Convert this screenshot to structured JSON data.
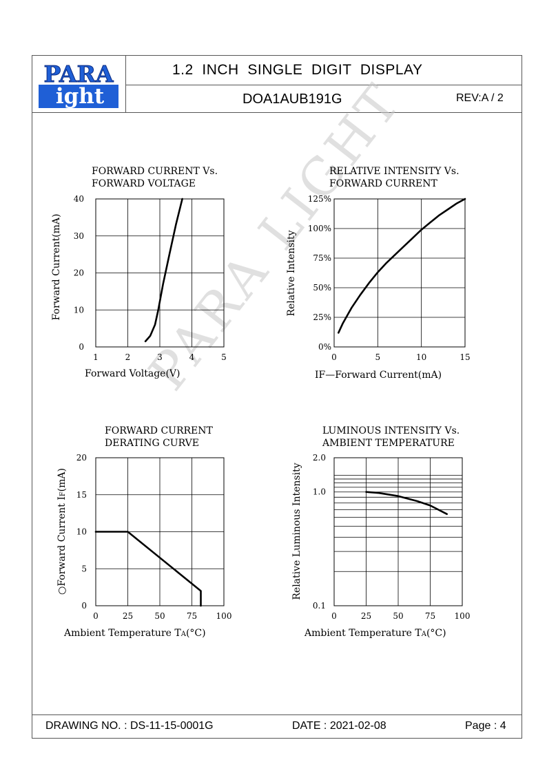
{
  "header": {
    "logo_top": "PARA",
    "logo_bottom": "ight",
    "title": "1.2  INCH  SINGLE  DIGIT  DISPLAY",
    "part_number": "DOA1AUB191G",
    "revision": "REV:A / 2"
  },
  "footer": {
    "drawing_no": "DRAWING NO. : DS-11-15-0001G",
    "date": "DATE : 2021-02-08",
    "page": "Page : 4"
  },
  "watermark": "PARA LIGHT",
  "colors": {
    "line": "#000000",
    "frame": "#555555",
    "logo_blue": "#1f5fd6",
    "watermark": "#c8c8c8"
  },
  "chart_data": [
    {
      "type": "line",
      "title": [
        "FORWARD  CURRENT  Vs.",
        "FORWARD  VOLTAGE"
      ],
      "xlabel": "Forward  Voltage(V)",
      "ylabel": "Forward  Current(mA)",
      "xlim": [
        1,
        5
      ],
      "ylim": [
        0,
        40
      ],
      "x_ticks": [
        "1",
        "2",
        "3",
        "4",
        "5"
      ],
      "y_ticks": [
        "0",
        "10",
        "20",
        "30",
        "40"
      ],
      "grid": true,
      "series": [
        {
          "x": [
            2.55,
            2.7,
            2.85,
            2.95,
            3.1,
            3.3,
            3.5,
            3.7
          ],
          "y": [
            1.5,
            3,
            6,
            10,
            17,
            25,
            33,
            40
          ]
        }
      ]
    },
    {
      "type": "line",
      "title": [
        "RELATIVE  INTENSITY  Vs.",
        "FORWARD  CURRENT"
      ],
      "xlabel_prefix": "IF",
      "xlabel": "—Forward  Current(mA)",
      "ylabel": "Relative  Intensity",
      "xlim": [
        0,
        15
      ],
      "ylim": [
        0,
        125
      ],
      "x_ticks": [
        "0",
        "5",
        "10",
        "15"
      ],
      "y_ticks": [
        "0%",
        "25%",
        "50%",
        "75%",
        "100%",
        "125%"
      ],
      "grid": true,
      "series": [
        {
          "x": [
            0.5,
            1,
            2,
            3,
            4,
            5,
            6,
            7,
            8,
            9,
            10,
            11,
            12,
            13,
            14,
            15
          ],
          "y": [
            12,
            20,
            33,
            44,
            54,
            63,
            71,
            78,
            85,
            92,
            99,
            105,
            111,
            116,
            121,
            125
          ]
        }
      ]
    },
    {
      "type": "line",
      "title": [
        "FORWARD  CURRENT",
        "DERATING  CURVE"
      ],
      "xlabel_prefix": "Ambient  Temperature  T",
      "xlabel_sub": "A",
      "xlabel": "(°C)",
      "ylabel_prefix": "○Forward  Current  I",
      "ylabel_sub": "F",
      "ylabel": "(mA)",
      "xlim": [
        0,
        100
      ],
      "ylim": [
        0,
        20
      ],
      "x_ticks": [
        "0",
        "25",
        "50",
        "75",
        "100"
      ],
      "y_ticks": [
        "0",
        "5",
        "10",
        "15",
        "20"
      ],
      "grid": true,
      "series": [
        {
          "x": [
            0,
            25,
            82,
            82
          ],
          "y": [
            10,
            10,
            2,
            0
          ]
        }
      ]
    },
    {
      "type": "line",
      "title": [
        "LUMINOUS  INTENSITY  Vs.",
        "AMBIENT  TEMPERATURE"
      ],
      "xlabel_prefix": "Ambient  Temperature  T",
      "xlabel_sub": "A",
      "xlabel": "(°C)",
      "ylabel": "Relative  Luminous  Intensity",
      "xlim": [
        0,
        100
      ],
      "ylim": [
        0.1,
        2.0
      ],
      "yscale": "log",
      "x_ticks": [
        "0",
        "25",
        "50",
        "75",
        "100"
      ],
      "y_ticks": [
        "0.1",
        "1.0",
        "2.0"
      ],
      "grid": true,
      "series": [
        {
          "x": [
            25,
            35,
            50,
            65,
            75,
            88
          ],
          "y": [
            1.0,
            0.98,
            0.92,
            0.83,
            0.76,
            0.64
          ]
        }
      ]
    }
  ]
}
